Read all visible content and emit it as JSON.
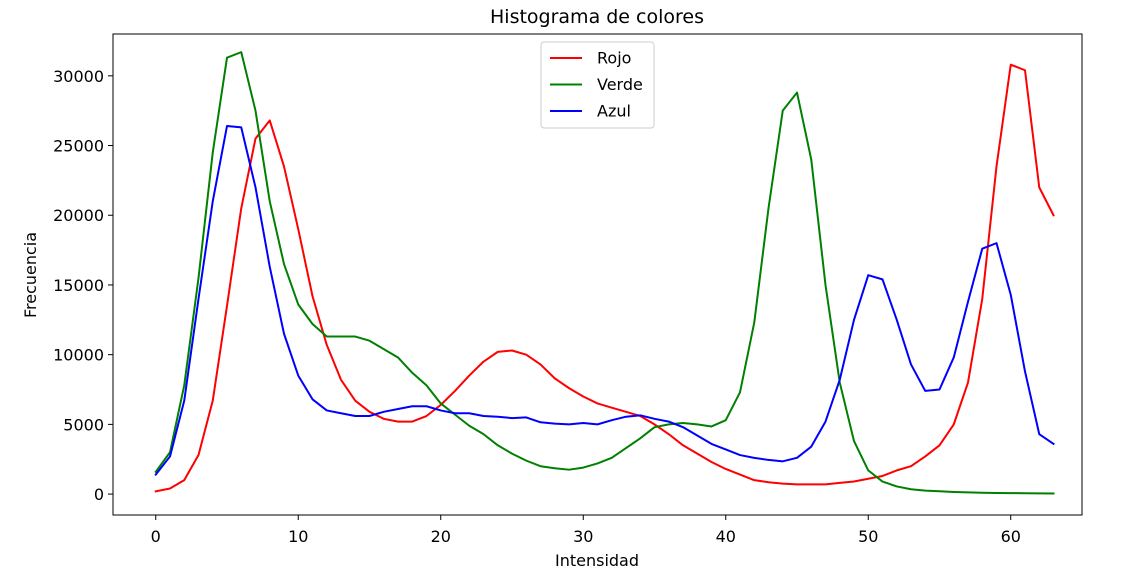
{
  "chart_data": {
    "type": "line",
    "title": "Histograma de colores",
    "xlabel": "Intensidad",
    "ylabel": "Frecuencia",
    "xlim": [
      -3,
      65
    ],
    "ylim": [
      -1500,
      33000
    ],
    "xticks": [
      0,
      10,
      20,
      30,
      40,
      50,
      60
    ],
    "yticks": [
      0,
      5000,
      10000,
      15000,
      20000,
      25000,
      30000
    ],
    "grid": false,
    "legend_position": "top-center",
    "x": [
      0,
      1,
      2,
      3,
      4,
      5,
      6,
      7,
      8,
      9,
      10,
      11,
      12,
      13,
      14,
      15,
      16,
      17,
      18,
      19,
      20,
      21,
      22,
      23,
      24,
      25,
      26,
      27,
      28,
      29,
      30,
      31,
      32,
      33,
      34,
      35,
      36,
      37,
      38,
      39,
      40,
      41,
      42,
      43,
      44,
      45,
      46,
      47,
      48,
      49,
      50,
      51,
      52,
      53,
      54,
      55,
      56,
      57,
      58,
      59,
      60,
      61,
      62,
      63
    ],
    "series": [
      {
        "name": "Rojo",
        "color": "#ff0000",
        "values": [
          200,
          400,
          1000,
          2800,
          6700,
          13500,
          20500,
          25500,
          26800,
          23500,
          19000,
          14200,
          10700,
          8200,
          6700,
          5900,
          5400,
          5200,
          5200,
          5600,
          6400,
          7400,
          8500,
          9500,
          10200,
          10300,
          10000,
          9300,
          8300,
          7600,
          7000,
          6500,
          6200,
          5900,
          5600,
          5000,
          4300,
          3500,
          2900,
          2300,
          1800,
          1400,
          1000,
          850,
          750,
          700,
          700,
          700,
          800,
          900,
          1100,
          1300,
          1700,
          2000,
          2700,
          3500,
          5000,
          8000,
          14000,
          23500,
          30800,
          30400,
          22000,
          20000
        ]
      },
      {
        "name": "Verde",
        "color": "#008000",
        "values": [
          1600,
          3000,
          7800,
          15500,
          24500,
          31300,
          31700,
          27500,
          21000,
          16500,
          13600,
          12200,
          11300,
          11300,
          11300,
          11000,
          10400,
          9800,
          8700,
          7800,
          6500,
          5700,
          4900,
          4300,
          3500,
          2900,
          2400,
          2000,
          1850,
          1750,
          1900,
          2200,
          2600,
          3300,
          4000,
          4800,
          5000,
          5100,
          5000,
          4850,
          5300,
          7300,
          12300,
          20500,
          27500,
          28800,
          24000,
          15000,
          8000,
          3800,
          1700,
          900,
          550,
          350,
          250,
          200,
          150,
          120,
          100,
          80,
          70,
          60,
          50,
          40
        ]
      },
      {
        "name": "Azul",
        "color": "#0000ff",
        "values": [
          1400,
          2700,
          6700,
          14000,
          21000,
          26400,
          26300,
          22000,
          16300,
          11500,
          8500,
          6800,
          6000,
          5800,
          5600,
          5600,
          5900,
          6100,
          6300,
          6300,
          6000,
          5800,
          5800,
          5600,
          5550,
          5450,
          5500,
          5150,
          5050,
          5000,
          5100,
          5000,
          5300,
          5550,
          5650,
          5400,
          5200,
          4800,
          4200,
          3600,
          3200,
          2800,
          2600,
          2450,
          2350,
          2600,
          3400,
          5200,
          8200,
          12500,
          15700,
          15400,
          12500,
          9300,
          7400,
          7500,
          9800,
          13800,
          17600,
          18000,
          14300,
          8800,
          4300,
          3600
        ]
      }
    ]
  }
}
